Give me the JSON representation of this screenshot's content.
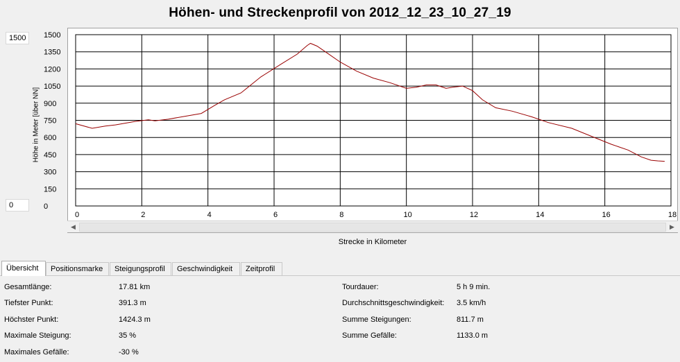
{
  "title": "Höhen- und Streckenprofil von 2012_12_23_10_27_19",
  "ymax_input": "1500",
  "ymin_input": "0",
  "chart_data": {
    "type": "line",
    "xlabel": "Strecke in Kilometer",
    "ylabel": "Höhe in Meter [über NN]",
    "xlim": [
      0,
      18
    ],
    "ylim": [
      0,
      1500
    ],
    "x_ticks": [
      "0",
      "2",
      "4",
      "6",
      "8",
      "10",
      "12",
      "14",
      "16",
      "18"
    ],
    "y_ticks": [
      "0",
      "150",
      "300",
      "450",
      "600",
      "750",
      "900",
      "1050",
      "1200",
      "1350",
      "1500"
    ],
    "grid": true,
    "line_color": "#990000",
    "series": [
      {
        "x": [
          0,
          0.5,
          0.9,
          1.2,
          1.8,
          2.2,
          2.4,
          2.8,
          3.3,
          3.8,
          4.2,
          4.5,
          5.0,
          5.6,
          6.2,
          6.7,
          7.0,
          7.1,
          7.3,
          7.6,
          8.0,
          8.5,
          9.0,
          9.5,
          10.0,
          10.3,
          10.6,
          10.9,
          11.2,
          11.4,
          11.7,
          12.0,
          12.3,
          12.7,
          13.2,
          13.8,
          14.3,
          15.0,
          15.6,
          16.2,
          16.7,
          17.1,
          17.4,
          17.6,
          17.81
        ],
        "y": [
          720,
          680,
          700,
          710,
          740,
          755,
          745,
          760,
          785,
          810,
          880,
          930,
          990,
          1130,
          1240,
          1330,
          1405,
          1424,
          1400,
          1340,
          1260,
          1180,
          1120,
          1080,
          1030,
          1040,
          1060,
          1060,
          1030,
          1040,
          1050,
          1010,
          930,
          860,
          830,
          780,
          730,
          680,
          610,
          540,
          490,
          430,
          400,
          395,
          391
        ]
      }
    ]
  },
  "tabs": [
    "Übersicht",
    "Positionsmarke",
    "Steigungsprofil",
    "Geschwindigkeit",
    "Zeitprofil"
  ],
  "stats_left": [
    {
      "label": "Gesamtlänge:",
      "value": "17.81 km"
    },
    {
      "label": "Tiefster Punkt:",
      "value": "391.3 m"
    },
    {
      "label": "Höchster Punkt:",
      "value": "1424.3 m"
    },
    {
      "label": "Maximale Steigung:",
      "value": "35 %"
    },
    {
      "label": "Maximales Gefälle:",
      "value": "-30 %"
    }
  ],
  "stats_right": [
    {
      "label": "Tourdauer:",
      "value": "5 h 9 min."
    },
    {
      "label": "Durchschnittsgeschwindigkeit:",
      "value": "3.5 km/h"
    },
    {
      "label": "Summe Steigungen:",
      "value": "811.7 m"
    },
    {
      "label": "Summe Gefälle:",
      "value": "1133.0 m"
    }
  ]
}
